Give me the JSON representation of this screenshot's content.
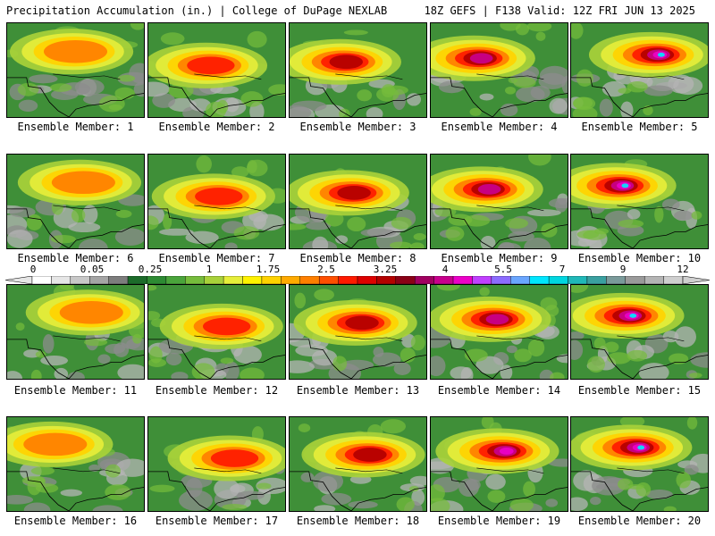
{
  "header": {
    "left": "Precipitation Accumulation (in.) | College of DuPage NEXLAB",
    "right": "18Z GEFS | F138 Valid: 12Z FRI JUN 13 2025"
  },
  "panels": [
    {
      "label": "Ensemble Member: 1"
    },
    {
      "label": "Ensemble Member: 2"
    },
    {
      "label": "Ensemble Member: 3"
    },
    {
      "label": "Ensemble Member: 4"
    },
    {
      "label": "Ensemble Member: 5"
    },
    {
      "label": "Ensemble Member: 6"
    },
    {
      "label": "Ensemble Member: 7"
    },
    {
      "label": "Ensemble Member: 8"
    },
    {
      "label": "Ensemble Member: 9"
    },
    {
      "label": "Ensemble Member: 10"
    },
    {
      "label": "Ensemble Member: 11"
    },
    {
      "label": "Ensemble Member: 12"
    },
    {
      "label": "Ensemble Member: 13"
    },
    {
      "label": "Ensemble Member: 14"
    },
    {
      "label": "Ensemble Member: 15"
    },
    {
      "label": "Ensemble Member: 16"
    },
    {
      "label": "Ensemble Member: 17"
    },
    {
      "label": "Ensemble Member: 18"
    },
    {
      "label": "Ensemble Member: 19"
    },
    {
      "label": "Ensemble Member: 20"
    }
  ],
  "colorbar": {
    "labels": [
      "0",
      "0.05",
      "0.25",
      "1",
      "1.75",
      "2.5",
      "3.25",
      "4",
      "5.5",
      "7",
      "9",
      "12"
    ],
    "colors": [
      "#ffffff",
      "#e6e6e6",
      "#c8c8c8",
      "#a5a5a5",
      "#7d7d7d",
      "#1c6b2a",
      "#2d8a33",
      "#4aa43b",
      "#76bc3c",
      "#a8d13a",
      "#e6ee3a",
      "#fff200",
      "#ffd200",
      "#ffaa00",
      "#ff7f00",
      "#ff4f00",
      "#ff1a00",
      "#dd0000",
      "#b30000",
      "#8a0016",
      "#a10060",
      "#c8008c",
      "#ec00c8",
      "#c040ff",
      "#8c6cff",
      "#6aa6ff",
      "#00e6ff",
      "#00d6e0",
      "#20b8b8",
      "#3aa0a0",
      "#7a9a9a",
      "#9a9a9a",
      "#b4b4b4",
      "#cfcfcf"
    ]
  }
}
